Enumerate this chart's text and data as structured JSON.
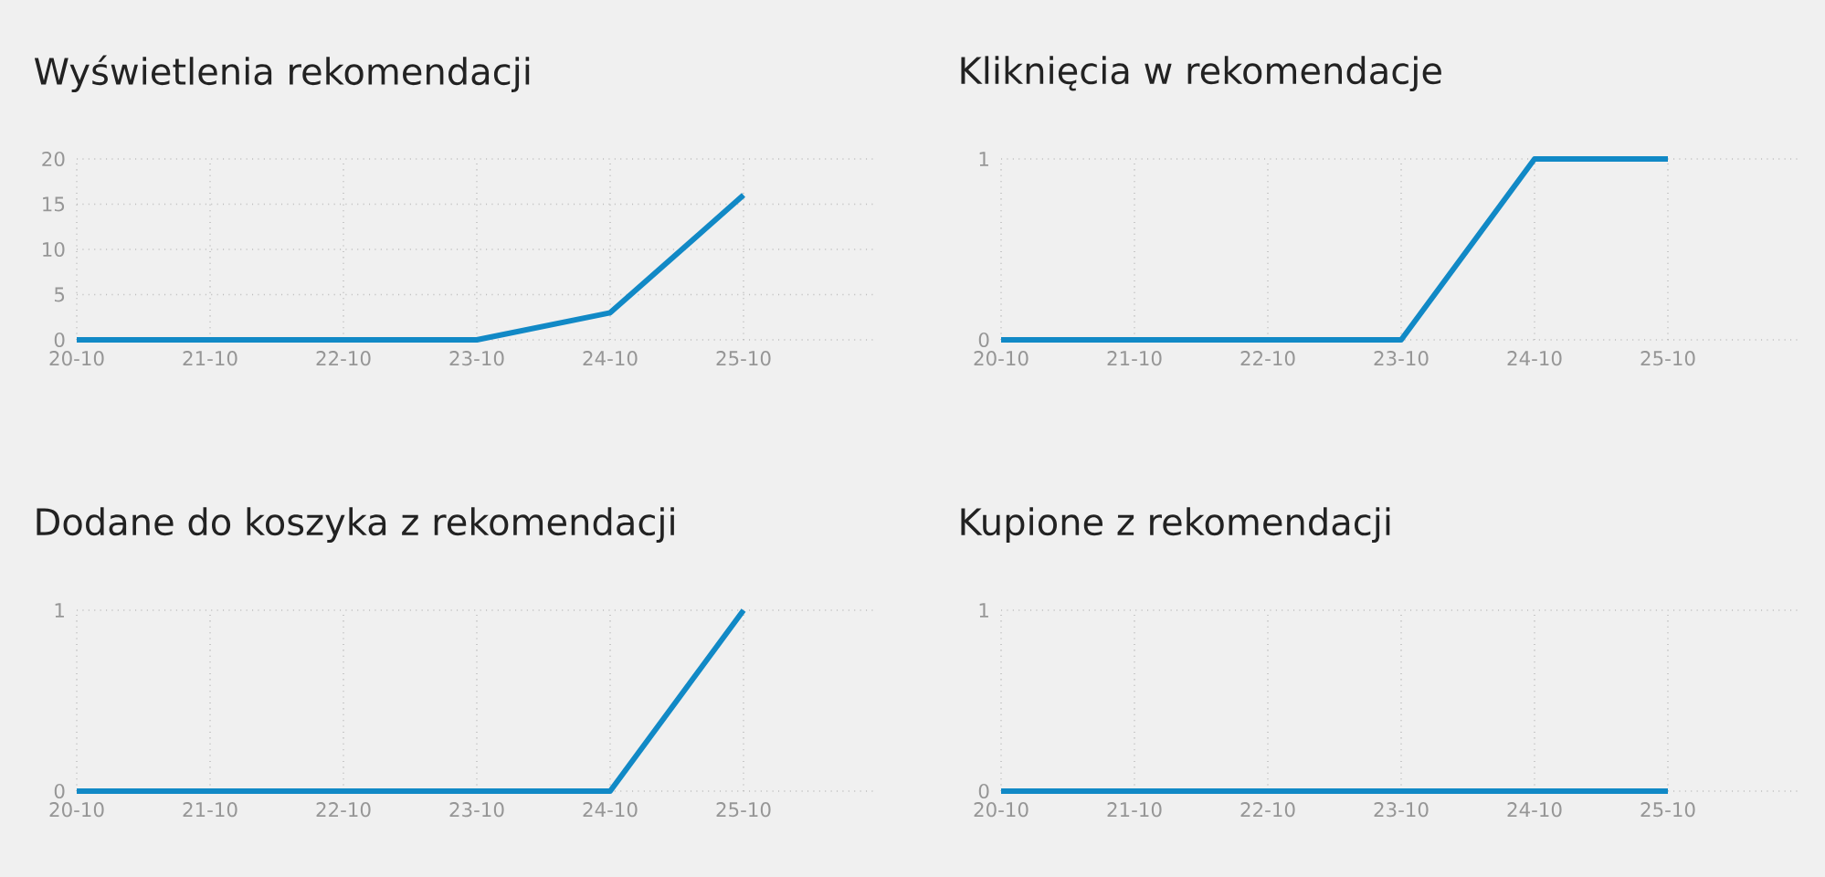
{
  "chart_data": [
    {
      "type": "line",
      "title": "Wyświetlenia rekomendacji",
      "categories": [
        "20-10",
        "21-10",
        "22-10",
        "23-10",
        "24-10",
        "25-10"
      ],
      "values": [
        0,
        0,
        0,
        0,
        3,
        16
      ],
      "color": "#1189c6",
      "ylim": [
        0,
        20
      ],
      "yticks": [
        0,
        5,
        10,
        15,
        20
      ],
      "grid": true
    },
    {
      "type": "line",
      "title": "Kliknięcia w rekomendacje",
      "categories": [
        "20-10",
        "21-10",
        "22-10",
        "23-10",
        "24-10",
        "25-10"
      ],
      "values": [
        0,
        0,
        0,
        0,
        1,
        1
      ],
      "color": "#1189c6",
      "ylim": [
        0,
        1
      ],
      "yticks": [
        0,
        1
      ],
      "grid": true
    },
    {
      "type": "line",
      "title": "Dodane do koszyka z rekomendacji",
      "categories": [
        "20-10",
        "21-10",
        "22-10",
        "23-10",
        "24-10",
        "25-10"
      ],
      "values": [
        0,
        0,
        0,
        0,
        0,
        1
      ],
      "color": "#1189c6",
      "ylim": [
        0,
        1
      ],
      "yticks": [
        0,
        1
      ],
      "grid": true
    },
    {
      "type": "line",
      "title": "Kupione z rekomendacji",
      "categories": [
        "20-10",
        "21-10",
        "22-10",
        "23-10",
        "24-10",
        "25-10"
      ],
      "values": [
        0,
        0,
        0,
        0,
        0,
        0
      ],
      "color": "#1189c6",
      "ylim": [
        0,
        1
      ],
      "yticks": [
        0,
        1
      ],
      "grid": true
    }
  ]
}
